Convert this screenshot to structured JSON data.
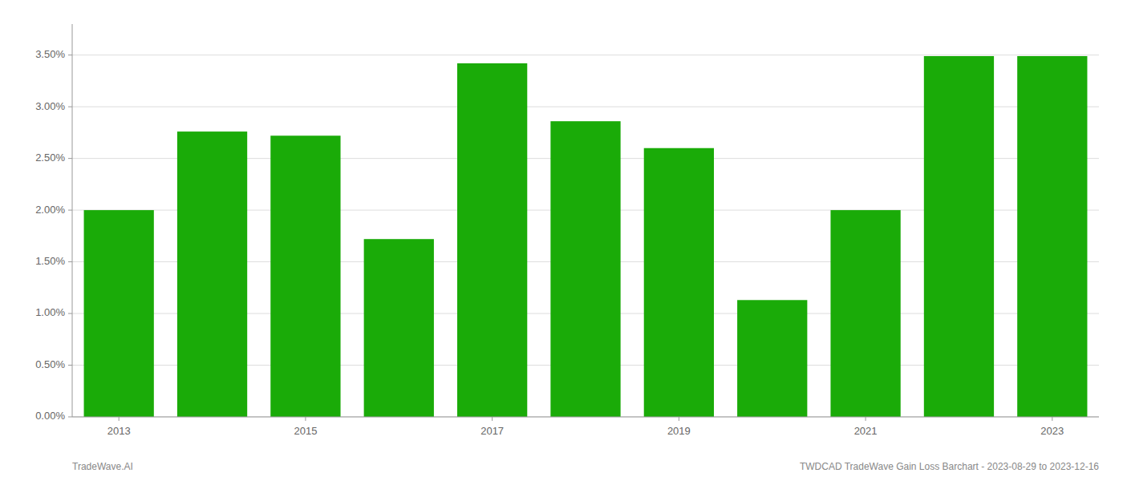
{
  "chart_data": {
    "type": "bar",
    "categories": [
      "2013",
      null,
      "2015",
      null,
      "2017",
      null,
      "2019",
      null,
      "2021",
      null,
      "2023"
    ],
    "values": [
      0.02,
      0.0276,
      0.0272,
      0.0172,
      0.0342,
      0.0286,
      0.026,
      0.0113,
      0.02,
      0.0349,
      0.0349
    ],
    "color": "#1aab08",
    "ylim": [
      0.0,
      0.038
    ],
    "yticks": [
      {
        "value": 0.0,
        "label": "0.00%"
      },
      {
        "value": 0.005,
        "label": "0.50%"
      },
      {
        "value": 0.01,
        "label": "1.00%"
      },
      {
        "value": 0.015,
        "label": "1.50%"
      },
      {
        "value": 0.02,
        "label": "2.00%"
      },
      {
        "value": 0.025,
        "label": "2.50%"
      },
      {
        "value": 0.03,
        "label": "3.00%"
      },
      {
        "value": 0.035,
        "label": "3.50%"
      }
    ],
    "grid": true,
    "annotations": [
      "TradeWave.AI",
      "TWDCAD TradeWave Gain Loss Barchart - 2023-08-29 to 2023-12-16"
    ]
  }
}
